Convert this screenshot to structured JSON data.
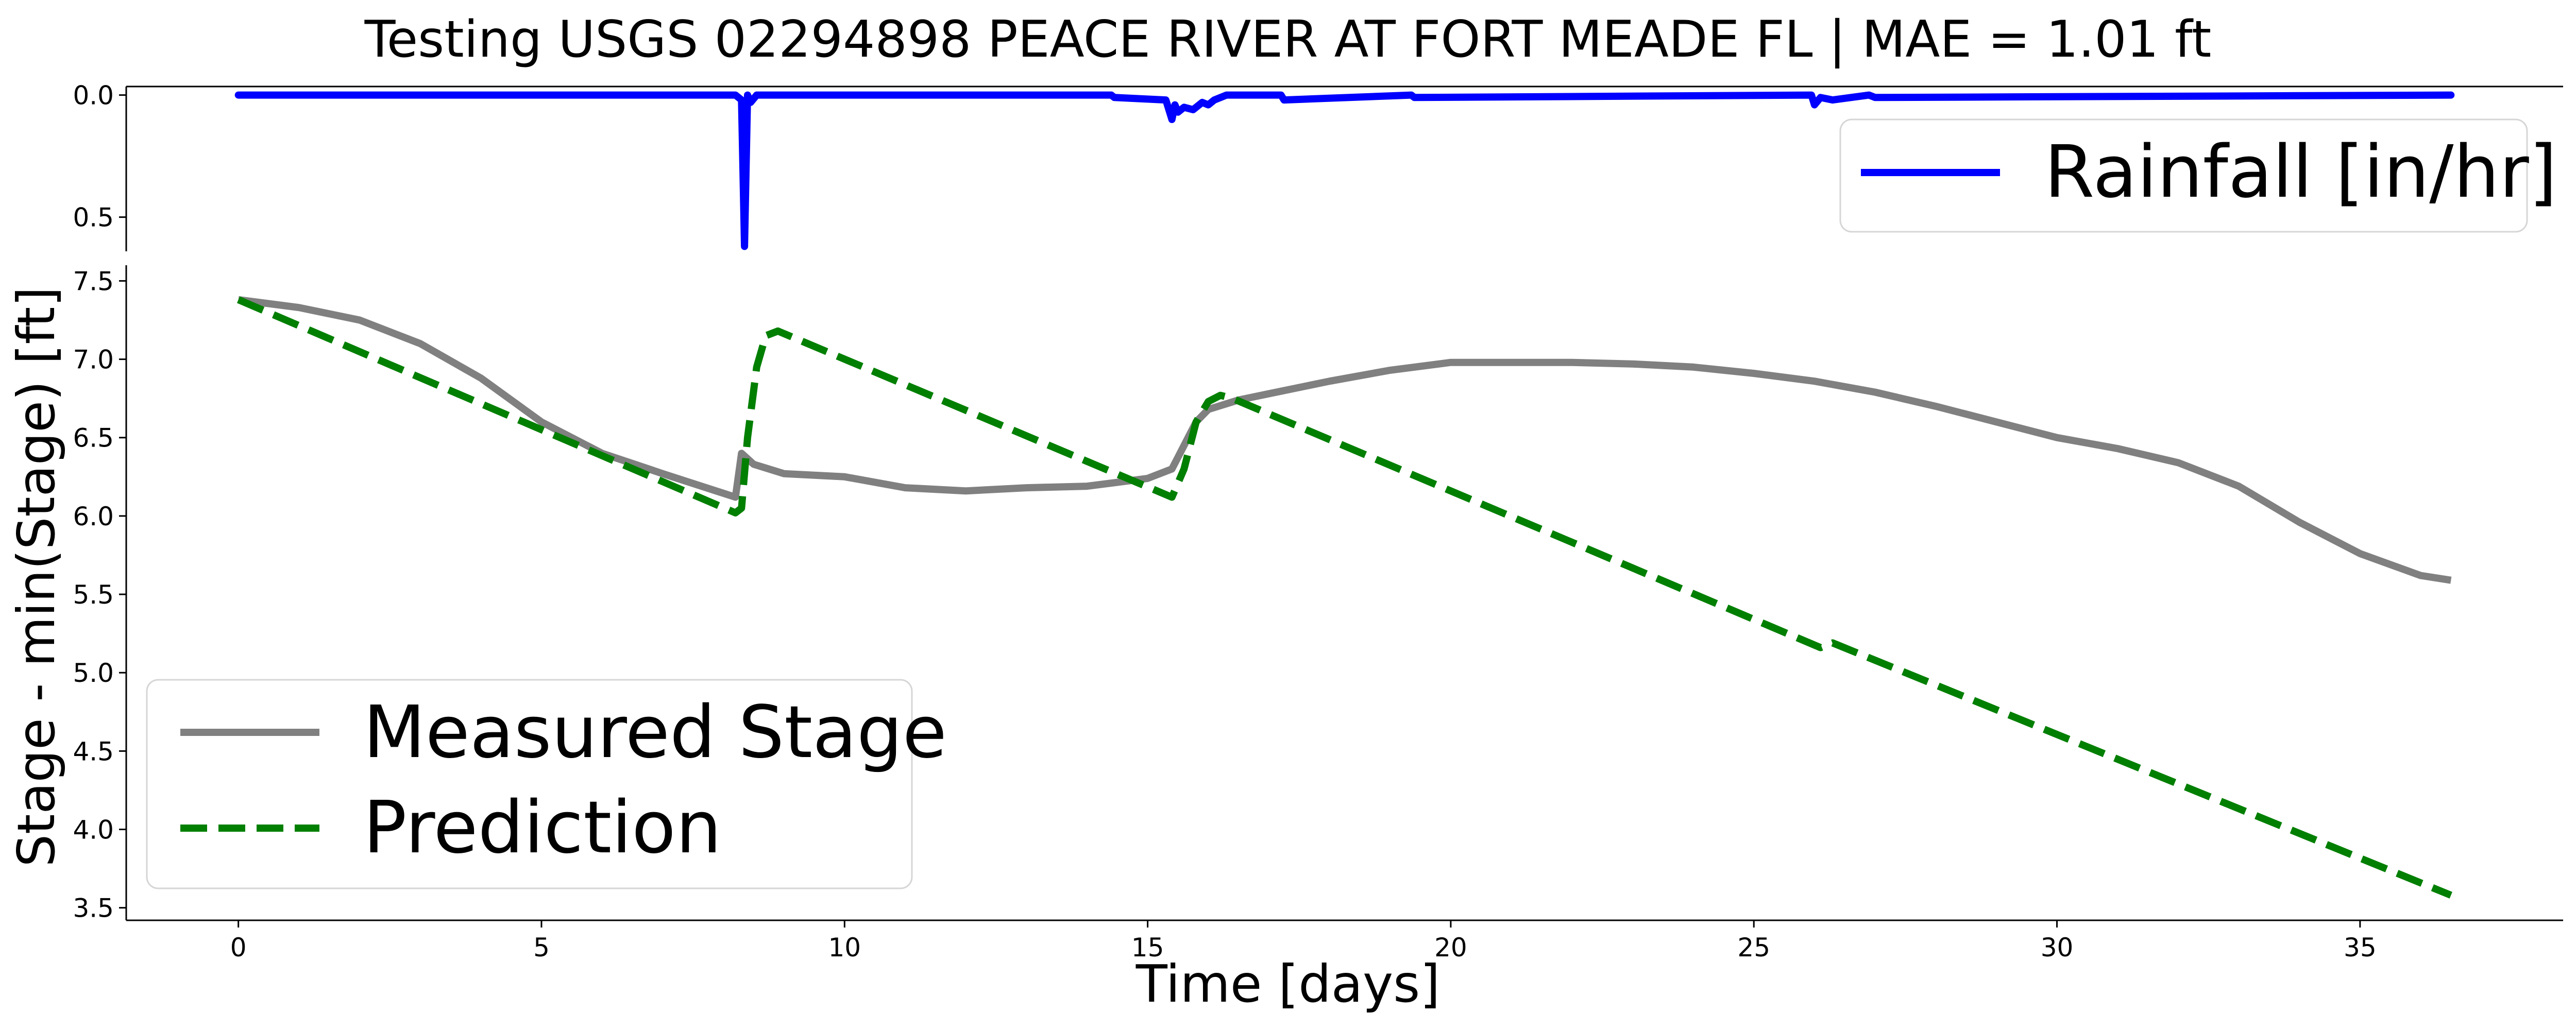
{
  "title": "Testing USGS 02294898 PEACE RIVER AT FORT MEADE FL | MAE = 1.01 ft",
  "chart_data": [
    {
      "type": "line",
      "panel": "rainfall",
      "series": [
        {
          "name": "Rainfall [in/hr]",
          "color": "#0000ff",
          "x": [
            0,
            8.2,
            8.3,
            8.35,
            8.4,
            8.45,
            8.55,
            14.4,
            14.45,
            15.3,
            15.4,
            15.45,
            15.5,
            15.6,
            15.75,
            15.9,
            16.0,
            16.1,
            16.3,
            17.2,
            17.25,
            19.35,
            19.4,
            25.95,
            26.0,
            26.1,
            26.3,
            26.9,
            27.0,
            36.5
          ],
          "y": [
            0,
            0,
            0.02,
            0.62,
            0.0,
            0.03,
            0,
            0,
            0.01,
            0.02,
            0.1,
            0.04,
            0.07,
            0.05,
            0.06,
            0.03,
            0.04,
            0.02,
            0,
            0,
            0.02,
            0,
            0.01,
            0,
            0.04,
            0.01,
            0.02,
            0,
            0.01,
            0
          ]
        }
      ],
      "xlim": [
        -1.85,
        38.35
      ],
      "ylim": [
        0.64,
        -0.035
      ],
      "yticks": [
        0.0,
        0.5
      ],
      "ytick_labels": [
        "0.0",
        "0.5"
      ],
      "legend_position": "upper right"
    },
    {
      "type": "line",
      "panel": "stage",
      "series": [
        {
          "name": "Measured Stage",
          "color": "#808080",
          "style": "solid",
          "x": [
            0,
            1,
            2,
            3,
            4,
            5,
            6,
            7,
            8.2,
            8.3,
            8.5,
            9,
            10,
            11,
            12,
            13,
            14,
            15,
            15.4,
            15.6,
            15.8,
            16,
            16.5,
            17,
            18,
            19,
            20,
            21,
            22,
            23,
            24,
            25,
            26,
            27,
            28,
            29,
            30,
            31,
            32,
            33,
            34,
            35,
            36,
            36.5
          ],
          "y": [
            7.38,
            7.33,
            7.25,
            7.1,
            6.88,
            6.6,
            6.4,
            6.27,
            6.12,
            6.4,
            6.33,
            6.27,
            6.25,
            6.18,
            6.16,
            6.18,
            6.19,
            6.24,
            6.3,
            6.45,
            6.6,
            6.68,
            6.74,
            6.78,
            6.86,
            6.93,
            6.98,
            6.98,
            6.98,
            6.97,
            6.95,
            6.91,
            6.86,
            6.79,
            6.7,
            6.6,
            6.5,
            6.43,
            6.34,
            6.19,
            5.96,
            5.76,
            5.62,
            5.59
          ]
        },
        {
          "name": "Prediction",
          "color": "#007f00",
          "style": "dashed",
          "x": [
            0,
            8.2,
            8.3,
            8.4,
            8.55,
            8.7,
            8.9,
            15.4,
            15.6,
            15.8,
            16.0,
            16.2,
            16.4,
            26.1,
            26.3,
            36.5
          ],
          "y": [
            7.38,
            6.02,
            6.05,
            6.5,
            6.95,
            7.15,
            7.18,
            6.12,
            6.3,
            6.6,
            6.73,
            6.77,
            6.75,
            5.16,
            5.19,
            3.58
          ]
        }
      ],
      "xlim": [
        -1.85,
        38.35
      ],
      "ylim": [
        3.42,
        7.6
      ],
      "xticks": [
        0,
        5,
        10,
        15,
        20,
        25,
        30,
        35
      ],
      "xtick_labels": [
        "0",
        "5",
        "10",
        "15",
        "20",
        "25",
        "30",
        "35"
      ],
      "yticks": [
        3.5,
        4.0,
        4.5,
        5.0,
        5.5,
        6.0,
        6.5,
        7.0,
        7.5
      ],
      "ytick_labels": [
        "3.5",
        "4.0",
        "4.5",
        "5.0",
        "5.5",
        "6.0",
        "6.5",
        "7.0",
        "7.5"
      ],
      "xlabel": "Time [days]",
      "ylabel": "Stage - min(Stage) [ft]",
      "legend_position": "lower left"
    }
  ]
}
